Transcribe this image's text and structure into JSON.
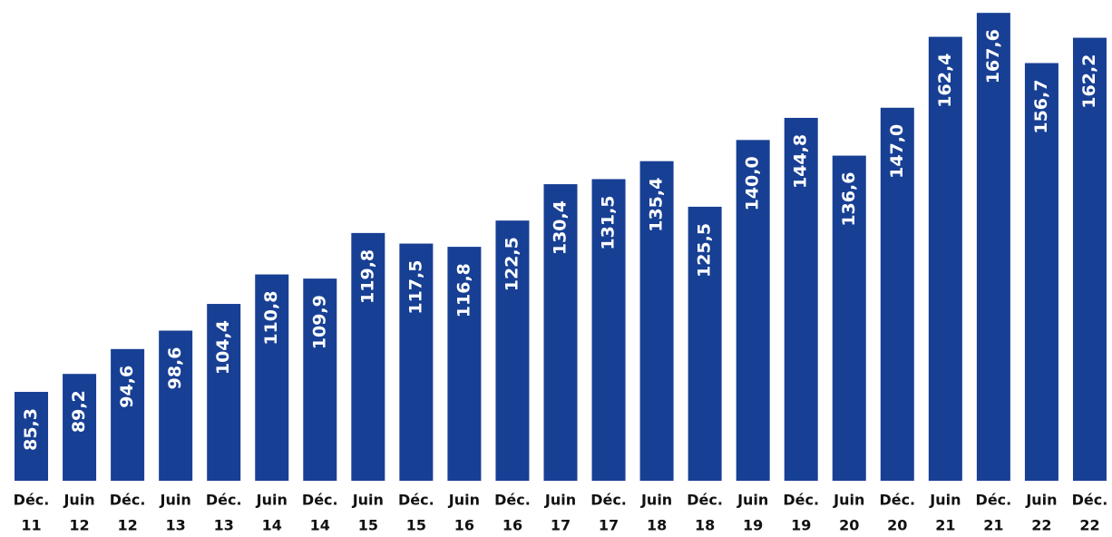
{
  "chart_data": {
    "type": "bar",
    "color": "#173f94",
    "categories": [
      [
        "Déc.",
        "11"
      ],
      [
        "Juin",
        "12"
      ],
      [
        "Déc.",
        "12"
      ],
      [
        "Juin",
        "13"
      ],
      [
        "Déc.",
        "13"
      ],
      [
        "Juin",
        "14"
      ],
      [
        "Déc.",
        "14"
      ],
      [
        "Juin",
        "15"
      ],
      [
        "Déc.",
        "15"
      ],
      [
        "Juin",
        "16"
      ],
      [
        "Déc.",
        "16"
      ],
      [
        "Juin",
        "17"
      ],
      [
        "Déc.",
        "17"
      ],
      [
        "Juin",
        "18"
      ],
      [
        "Déc.",
        "18"
      ],
      [
        "Juin",
        "19"
      ],
      [
        "Déc.",
        "19"
      ],
      [
        "Juin",
        "20"
      ],
      [
        "Déc.",
        "20"
      ],
      [
        "Juin",
        "21"
      ],
      [
        "Déc.",
        "21"
      ],
      [
        "Juin",
        "22"
      ],
      [
        "Déc.",
        "22"
      ]
    ],
    "values": [
      85.3,
      89.2,
      94.6,
      98.6,
      104.4,
      110.8,
      109.9,
      119.8,
      117.5,
      116.8,
      122.5,
      130.4,
      131.5,
      135.4,
      125.5,
      140.0,
      144.8,
      136.6,
      147.0,
      162.4,
      167.6,
      156.7,
      162.2
    ],
    "value_labels": [
      "85,3",
      "89,2",
      "94,6",
      "98,6",
      "104,4",
      "110,8",
      "109,9",
      "119,8",
      "117,5",
      "116,8",
      "122,5",
      "130,4",
      "131,5",
      "135,4",
      "125,5",
      "140,0",
      "144,8",
      "136,6",
      "147,0",
      "162,4",
      "167,6",
      "156,7",
      "162,2"
    ],
    "ylim": [
      66,
      170
    ]
  }
}
